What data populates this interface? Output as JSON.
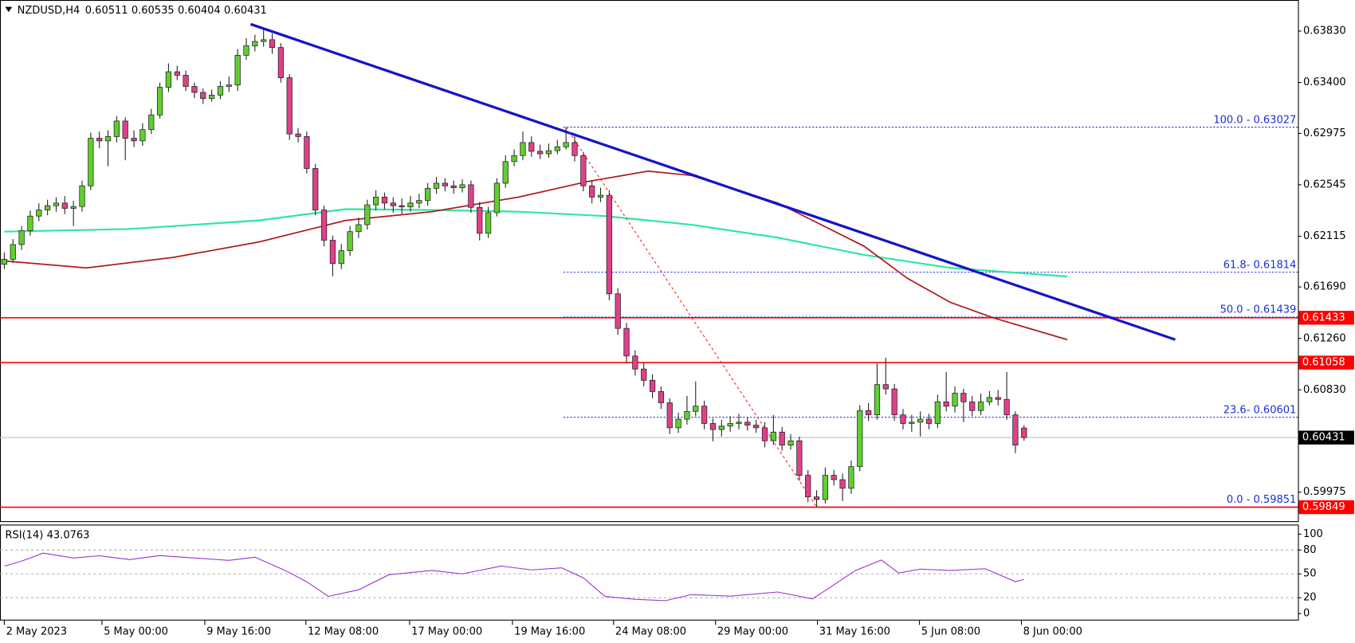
{
  "chart_data": {
    "type": "candlestick",
    "symbol": "NZDUSD,H4",
    "bull_color": "#5fcf2f",
    "bear_color": "#e0408a",
    "candles": [
      [
        0.6188,
        0.6198,
        0.6184,
        0.61922
      ],
      [
        0.61922,
        0.6209,
        0.6189,
        0.62045
      ],
      [
        0.62045,
        0.622,
        0.62,
        0.62161
      ],
      [
        0.62161,
        0.6233,
        0.6212,
        0.62283
      ],
      [
        0.62283,
        0.6239,
        0.6224,
        0.62334
      ],
      [
        0.62334,
        0.6242,
        0.6229,
        0.6237
      ],
      [
        0.6237,
        0.6244,
        0.6232,
        0.62392
      ],
      [
        0.62392,
        0.6245,
        0.623,
        0.62348
      ],
      [
        0.62348,
        0.6241,
        0.622,
        0.62363
      ],
      [
        0.62363,
        0.6258,
        0.6232,
        0.62536
      ],
      [
        0.62536,
        0.6298,
        0.625,
        0.62934
      ],
      [
        0.62934,
        0.6299,
        0.6285,
        0.62912
      ],
      [
        0.62912,
        0.63,
        0.627,
        0.62948
      ],
      [
        0.62948,
        0.6312,
        0.629,
        0.63078
      ],
      [
        0.63078,
        0.6311,
        0.6275,
        0.62934
      ],
      [
        0.62934,
        0.63,
        0.6286,
        0.62912
      ],
      [
        0.62912,
        0.6306,
        0.6287,
        0.63006
      ],
      [
        0.63006,
        0.6318,
        0.6297,
        0.63129
      ],
      [
        0.63129,
        0.634,
        0.631,
        0.6336
      ],
      [
        0.6336,
        0.6356,
        0.6332,
        0.6349
      ],
      [
        0.6349,
        0.6354,
        0.6342,
        0.63461
      ],
      [
        0.63461,
        0.635,
        0.6333,
        0.63367
      ],
      [
        0.63367,
        0.634,
        0.6327,
        0.63317
      ],
      [
        0.63317,
        0.6335,
        0.6322,
        0.63266
      ],
      [
        0.63266,
        0.6334,
        0.6324,
        0.63295
      ],
      [
        0.63295,
        0.6341,
        0.6326,
        0.63367
      ],
      [
        0.63367,
        0.6345,
        0.6332,
        0.6338
      ],
      [
        0.6338,
        0.6368,
        0.6333,
        0.63628
      ],
      [
        0.63628,
        0.6377,
        0.6359,
        0.63707
      ],
      [
        0.63707,
        0.638,
        0.6366,
        0.63743
      ],
      [
        0.63743,
        0.6384,
        0.637,
        0.63758
      ],
      [
        0.63758,
        0.6381,
        0.6364,
        0.63693
      ],
      [
        0.63693,
        0.6373,
        0.634,
        0.6344
      ],
      [
        0.6344,
        0.6347,
        0.6292,
        0.6297
      ],
      [
        0.6297,
        0.6302,
        0.629,
        0.62948
      ],
      [
        0.62948,
        0.6299,
        0.6264,
        0.62681
      ],
      [
        0.62681,
        0.6272,
        0.6229,
        0.62334
      ],
      [
        0.62334,
        0.6237,
        0.6203,
        0.62081
      ],
      [
        0.62081,
        0.6212,
        0.6178,
        0.61886
      ],
      [
        0.61886,
        0.6205,
        0.6184,
        0.61994
      ],
      [
        0.61994,
        0.622,
        0.6195,
        0.62153
      ],
      [
        0.62153,
        0.6227,
        0.621,
        0.62211
      ],
      [
        0.62211,
        0.6242,
        0.6217,
        0.62377
      ],
      [
        0.62377,
        0.625,
        0.6233,
        0.62442
      ],
      [
        0.62442,
        0.6248,
        0.6234,
        0.62392
      ],
      [
        0.62392,
        0.6244,
        0.6231,
        0.6237
      ],
      [
        0.6237,
        0.6243,
        0.623,
        0.6236
      ],
      [
        0.6236,
        0.6245,
        0.6232,
        0.62392
      ],
      [
        0.62392,
        0.6247,
        0.6235,
        0.62414
      ],
      [
        0.62414,
        0.6256,
        0.6237,
        0.62515
      ],
      [
        0.62515,
        0.6261,
        0.6247,
        0.62558
      ],
      [
        0.62558,
        0.626,
        0.6249,
        0.62536
      ],
      [
        0.62536,
        0.6258,
        0.6247,
        0.6252
      ],
      [
        0.6252,
        0.6259,
        0.6248,
        0.62545
      ],
      [
        0.62545,
        0.6258,
        0.6231,
        0.62356
      ],
      [
        0.62356,
        0.624,
        0.6208,
        0.62139
      ],
      [
        0.62139,
        0.6236,
        0.621,
        0.62312
      ],
      [
        0.62312,
        0.626,
        0.6228,
        0.62558
      ],
      [
        0.62558,
        0.6279,
        0.6252,
        0.62739
      ],
      [
        0.62739,
        0.6284,
        0.627,
        0.62789
      ],
      [
        0.62789,
        0.6299,
        0.6275,
        0.62898
      ],
      [
        0.62898,
        0.6295,
        0.6278,
        0.62825
      ],
      [
        0.62825,
        0.6288,
        0.6276,
        0.62804
      ],
      [
        0.62804,
        0.6289,
        0.6277,
        0.6283
      ],
      [
        0.6283,
        0.6292,
        0.628,
        0.62862
      ],
      [
        0.62862,
        0.63027,
        0.6284,
        0.62898
      ],
      [
        0.62898,
        0.6295,
        0.6274,
        0.62789
      ],
      [
        0.62789,
        0.6282,
        0.6249,
        0.62536
      ],
      [
        0.62536,
        0.6258,
        0.6239,
        0.62442
      ],
      [
        0.62442,
        0.6252,
        0.624,
        0.62457
      ],
      [
        0.62457,
        0.625,
        0.6158,
        0.61633
      ],
      [
        0.61633,
        0.6168,
        0.6129,
        0.61344
      ],
      [
        0.61344,
        0.6139,
        0.6106,
        0.61113
      ],
      [
        0.61113,
        0.6116,
        0.6095,
        0.61004
      ],
      [
        0.61004,
        0.6106,
        0.6086,
        0.6091
      ],
      [
        0.6091,
        0.6096,
        0.6076,
        0.60816
      ],
      [
        0.60816,
        0.6086,
        0.6067,
        0.60722
      ],
      [
        0.60722,
        0.6076,
        0.6046,
        0.60513
      ],
      [
        0.60513,
        0.6064,
        0.6047,
        0.60585
      ],
      [
        0.60585,
        0.6078,
        0.6054,
        0.6065
      ],
      [
        0.6065,
        0.609,
        0.6061,
        0.60694
      ],
      [
        0.60694,
        0.6074,
        0.605,
        0.60549
      ],
      [
        0.60549,
        0.6059,
        0.604,
        0.60498
      ],
      [
        0.60498,
        0.6058,
        0.6044,
        0.60527
      ],
      [
        0.60527,
        0.6061,
        0.6048,
        0.60549
      ],
      [
        0.60549,
        0.6063,
        0.605,
        0.6056
      ],
      [
        0.6056,
        0.606,
        0.6049,
        0.60535
      ],
      [
        0.60535,
        0.6058,
        0.6047,
        0.60513
      ],
      [
        0.60513,
        0.6056,
        0.6035,
        0.60404
      ],
      [
        0.60404,
        0.6062,
        0.6037,
        0.60477
      ],
      [
        0.60477,
        0.6052,
        0.6032,
        0.60368
      ],
      [
        0.60368,
        0.6046,
        0.6033,
        0.60404
      ],
      [
        0.60404,
        0.6044,
        0.6007,
        0.60115
      ],
      [
        0.60115,
        0.6016,
        0.5989,
        0.59935
      ],
      [
        0.59935,
        0.5999,
        0.59851,
        0.59913
      ],
      [
        0.59913,
        0.6018,
        0.5988,
        0.60115
      ],
      [
        0.60115,
        0.6016,
        0.6003,
        0.60079
      ],
      [
        0.60079,
        0.6013,
        0.599,
        0.60007
      ],
      [
        0.60007,
        0.6024,
        0.5996,
        0.60188
      ],
      [
        0.60188,
        0.607,
        0.6015,
        0.60657
      ],
      [
        0.60657,
        0.6072,
        0.6057,
        0.60621
      ],
      [
        0.60621,
        0.6105,
        0.6058,
        0.60874
      ],
      [
        0.60874,
        0.611,
        0.6079,
        0.60838
      ],
      [
        0.60838,
        0.6088,
        0.6057,
        0.60621
      ],
      [
        0.60621,
        0.6067,
        0.605,
        0.60549
      ],
      [
        0.60549,
        0.6062,
        0.6048,
        0.6056
      ],
      [
        0.6056,
        0.6065,
        0.6044,
        0.60585
      ],
      [
        0.60585,
        0.6063,
        0.605,
        0.60549
      ],
      [
        0.60549,
        0.6079,
        0.6051,
        0.6073
      ],
      [
        0.6073,
        0.6098,
        0.6065,
        0.60694
      ],
      [
        0.60694,
        0.6086,
        0.6064,
        0.60802
      ],
      [
        0.60802,
        0.6084,
        0.6056,
        0.6073
      ],
      [
        0.6073,
        0.6078,
        0.6061,
        0.60657
      ],
      [
        0.60657,
        0.608,
        0.6062,
        0.6073
      ],
      [
        0.6073,
        0.6082,
        0.607,
        0.60766
      ],
      [
        0.60766,
        0.6083,
        0.607,
        0.6075
      ],
      [
        0.6075,
        0.6098,
        0.6058,
        0.60621
      ],
      [
        0.60621,
        0.6065,
        0.603,
        0.60368
      ],
      [
        0.60511,
        0.60535,
        0.60404,
        0.60431
      ]
    ],
    "ylim": [
      0.59725,
      0.6409
    ],
    "yticks": [
      {
        "value": 0.6383,
        "label": "0.63830"
      },
      {
        "value": 0.634,
        "label": "0.63400"
      },
      0.62975,
      0.62545,
      0.62115,
      {
        "value": 0.6169,
        "label": "0.61690"
      },
      {
        "value": 0.6126,
        "label": "0.61260"
      },
      {
        "value": 0.6083,
        "label": "0.60830"
      },
      0.59975
    ],
    "xlim": [
      -0.5,
      149.7
    ],
    "xticks": [
      {
        "value": 0,
        "label": "2 May 2023"
      },
      {
        "value": 11.3,
        "label": "5 May 00:00"
      },
      {
        "value": 23.2,
        "label": "9 May 16:00"
      },
      {
        "value": 34.9,
        "label": "12 May 08:00"
      },
      {
        "value": 46.9,
        "label": "17 May 00:00"
      },
      {
        "value": 58.8,
        "label": "19 May 16:00"
      },
      {
        "value": 70.5,
        "label": "24 May 08:00"
      },
      {
        "value": 82.3,
        "label": "29 May 00:00"
      },
      {
        "value": 94.1,
        "label": "31 May 16:00"
      },
      {
        "value": 105.9,
        "label": "5 Jun 08:00"
      },
      {
        "value": 117.7,
        "label": "8 Jun 00:00"
      }
    ],
    "lines": [
      {
        "color": "#2ee6a0",
        "width": 2,
        "x": [
          0,
          14.5,
          29.5,
          39.5,
          49.5,
          59.5,
          69.5,
          79.5,
          89.5,
          99.5,
          109.5,
          123
        ],
        "values": [
          0.62153,
          0.62175,
          0.62247,
          0.62341,
          0.62334,
          0.6232,
          0.62283,
          0.62211,
          0.62103,
          0.61958,
          0.6185,
          0.61778
        ]
      },
      {
        "color": "#b01c1c",
        "width": 1.6,
        "x": [
          0,
          9.5,
          19.5,
          29.5,
          39.5,
          49.5,
          59.5,
          67.5,
          74.5,
          79.5,
          89.5,
          99.5,
          104.5,
          109.5,
          114.5,
          123
        ],
        "values": [
          0.61908,
          0.6185,
          0.61937,
          0.62067,
          0.62247,
          0.6232,
          0.62442,
          0.62572,
          0.62659,
          0.62623,
          0.62392,
          0.62031,
          0.61763,
          0.61561,
          0.61431,
          0.6125
        ]
      },
      {
        "color": "#1414c8",
        "width": 3,
        "x": [
          28.5,
          135.5
        ],
        "values": [
          0.63888,
          0.6125
        ]
      },
      {
        "color": "#ff2020",
        "width": 1,
        "dash": true,
        "x": [
          65,
          94
        ],
        "values": [
          0.63027,
          0.59851
        ]
      }
    ],
    "hlines": [
      {
        "value": 0.61433,
        "color": "#ff0000"
      },
      {
        "value": 0.61058,
        "color": "#ff0000"
      },
      {
        "value": 0.59849,
        "color": "#ff0000"
      }
    ],
    "fib_x": 64.7,
    "fib_color": "#1a2fd8",
    "fib_levels": [
      {
        "value": 0.63027,
        "label": "100.0 - 0.63027"
      },
      {
        "value": 0.61814,
        "label": "61.8- 0.61814"
      },
      {
        "value": 0.61439,
        "label": "50.0 - 0.61439"
      },
      {
        "value": 0.60601,
        "label": "23.6- 0.60601"
      },
      {
        "value": 0.59851,
        "label": "0.0 - 0.59851"
      }
    ],
    "rsi": {
      "name": "RSI(14)",
      "color": "#9b30d0",
      "x": [
        0,
        2,
        4.5,
        8,
        11,
        14.5,
        18,
        22,
        26,
        29,
        32.5,
        35,
        37.5,
        41,
        44.5,
        49.5,
        53,
        57.5,
        61,
        64.5,
        67,
        69.5,
        73,
        76.5,
        79.5,
        84,
        89.5,
        93.5,
        95.5,
        98.5,
        101.5,
        103.5,
        106,
        109.5,
        113.5,
        117,
        118
      ],
      "values": [
        59.8,
        66,
        76.1,
        70,
        72.8,
        68,
        73,
        70,
        67,
        71,
        54.3,
        40,
        21.7,
        30,
        48.9,
        54.3,
        50,
        59.8,
        55,
        57.6,
        45,
        21.7,
        18,
        16.3,
        23.9,
        22,
        27.2,
        18.5,
        32.6,
        54.3,
        67.4,
        51.1,
        56,
        54.3,
        56.5,
        40.2,
        43.0763
      ],
      "ylim": [
        -8.7,
        112
      ],
      "yticks": [
        100,
        80,
        50,
        20,
        0
      ],
      "levels": [
        80,
        50,
        20
      ]
    }
  }
}
